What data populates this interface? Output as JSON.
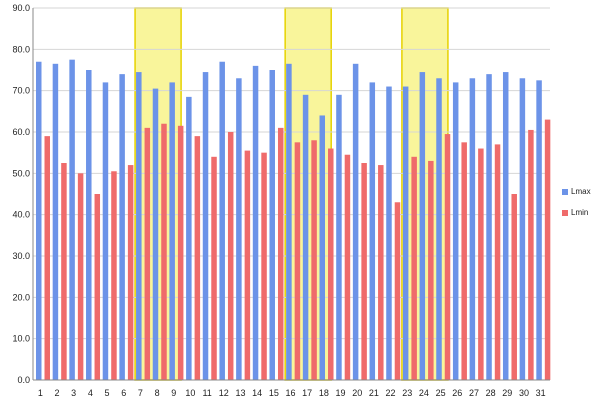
{
  "chart_data": {
    "type": "bar",
    "categories": [
      "1",
      "2",
      "3",
      "4",
      "5",
      "6",
      "7",
      "8",
      "9",
      "10",
      "11",
      "12",
      "13",
      "14",
      "15",
      "16",
      "17",
      "18",
      "19",
      "20",
      "21",
      "22",
      "23",
      "24",
      "25",
      "26",
      "27",
      "28",
      "29",
      "30",
      "31"
    ],
    "series": [
      {
        "name": "Lmax",
        "color": "#6c93e8",
        "values": [
          77.0,
          76.5,
          77.5,
          75.0,
          72.0,
          74.0,
          74.5,
          70.5,
          72.0,
          68.5,
          74.5,
          77.0,
          73.0,
          76.0,
          75.0,
          76.5,
          69.0,
          64.0,
          69.0,
          76.5,
          72.0,
          71.0,
          71.0,
          74.5,
          73.0,
          72.0,
          73.0,
          74.0,
          74.5,
          73.0,
          72.5
        ]
      },
      {
        "name": "Lmin",
        "color": "#ef6b6b",
        "values": [
          59.0,
          52.5,
          50.0,
          45.0,
          50.5,
          52.0,
          61.0,
          62.0,
          61.5,
          59.0,
          54.0,
          60.0,
          55.5,
          55.0,
          61.0,
          57.5,
          58.0,
          56.0,
          54.5,
          52.5,
          52.0,
          43.0,
          54.0,
          53.0,
          59.5,
          57.5,
          56.0,
          57.0,
          45.0,
          60.5,
          63.0
        ]
      }
    ],
    "highlights": [
      {
        "from": "7",
        "to": "9"
      },
      {
        "from": "16",
        "to": "18"
      },
      {
        "from": "23",
        "to": "25"
      }
    ],
    "highlight_color": "#f7f27a",
    "ylim": [
      0,
      90
    ],
    "yticks": [
      "0.0",
      "10.0",
      "20.0",
      "30.0",
      "40.0",
      "50.0",
      "60.0",
      "70.0",
      "80.0",
      "90.0"
    ],
    "grid": true,
    "legend_position": "right",
    "title": "",
    "xlabel": "",
    "ylabel": ""
  }
}
